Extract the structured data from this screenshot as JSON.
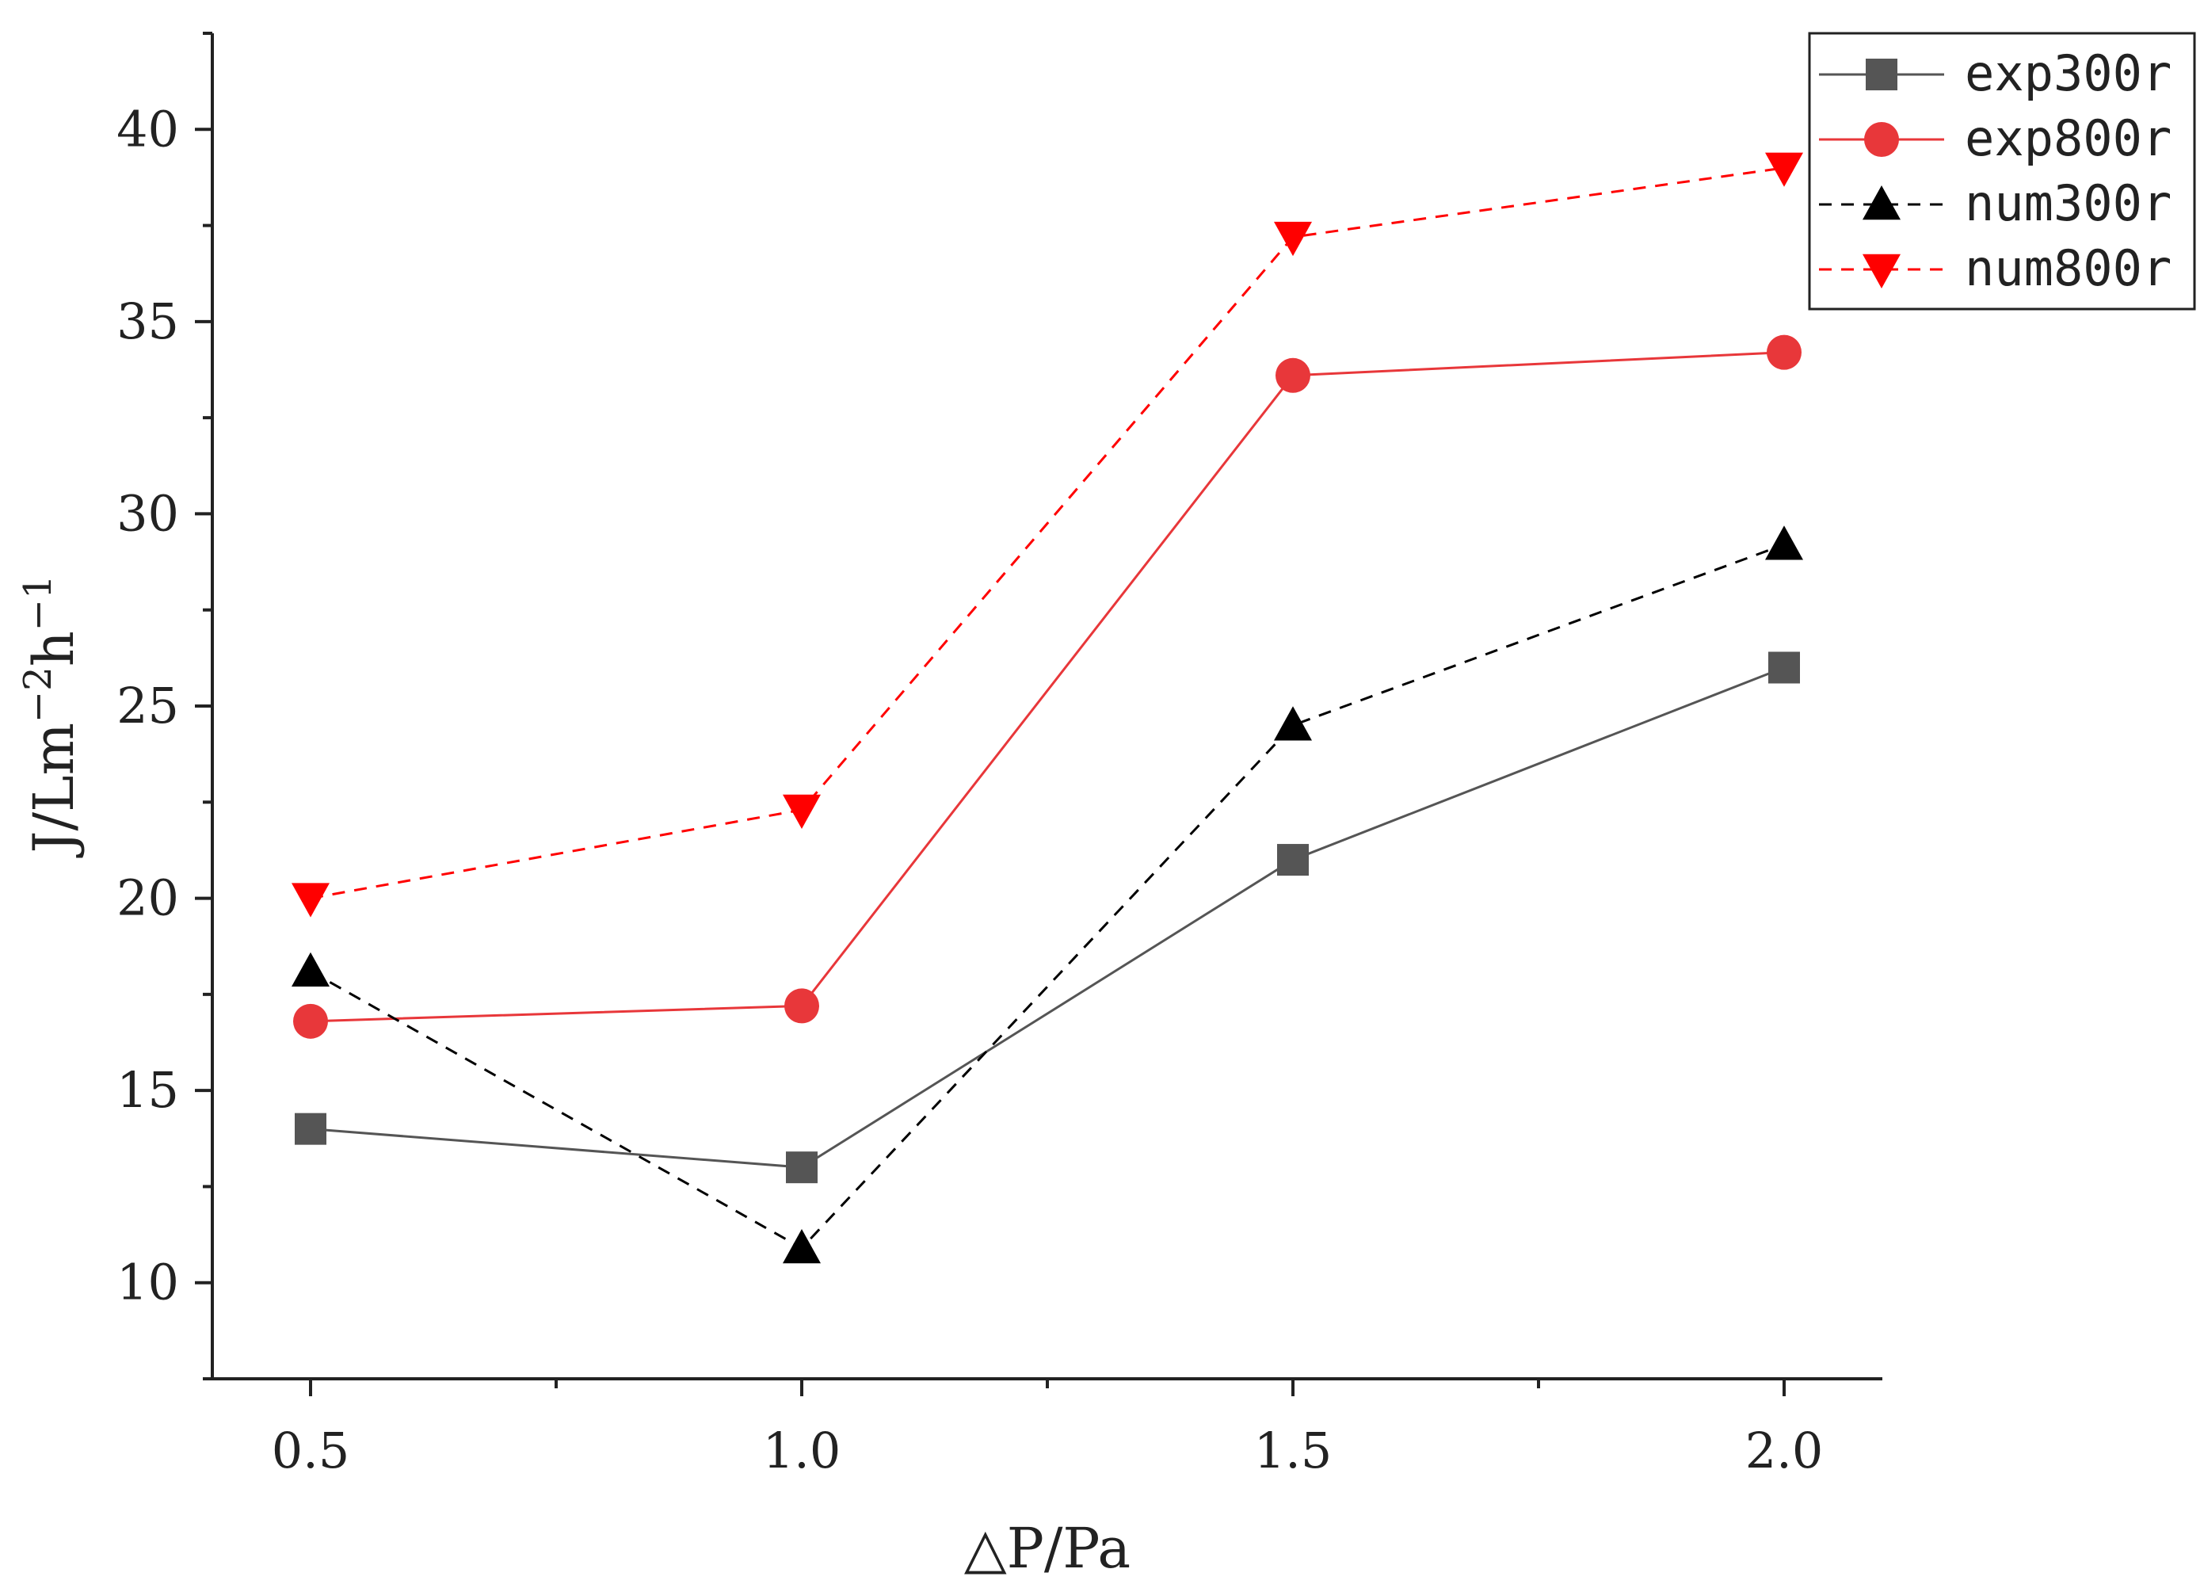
{
  "chart_data": {
    "type": "line",
    "title": "",
    "xlabel": "△P/Pa",
    "ylabel_base": "J/Lm",
    "ylabel_sup1": "−2",
    "ylabel_mid": "h",
    "ylabel_sup2": "−1",
    "x": [
      0.5,
      1.0,
      1.5,
      2.0
    ],
    "xlim": [
      0.4,
      2.1
    ],
    "ylim": [
      7.5,
      42.5
    ],
    "xticks": [
      "0.5",
      "1.0",
      "1.5",
      "2.0"
    ],
    "xtick_values": [
      0.5,
      1.0,
      1.5,
      2.0
    ],
    "xminor_ticks": [
      0.75,
      1.25,
      1.75
    ],
    "yticks": [
      "10",
      "15",
      "20",
      "25",
      "30",
      "35",
      "40"
    ],
    "ytick_values": [
      10,
      15,
      20,
      25,
      30,
      35,
      40
    ],
    "yminor_ticks": [
      7.5,
      12.5,
      17.5,
      22.5,
      27.5,
      32.5,
      37.5,
      42.5
    ],
    "grid": false,
    "legend_position": "top-right",
    "series": [
      {
        "name": "exp300r",
        "values": [
          14.0,
          13.0,
          21.0,
          26.0
        ],
        "color": "#555555",
        "marker": "square",
        "dashed": false
      },
      {
        "name": "exp800r",
        "values": [
          16.8,
          17.2,
          33.6,
          34.2
        ],
        "color": "#e8373a",
        "marker": "circle",
        "dashed": false
      },
      {
        "name": "num300r",
        "values": [
          18.1,
          10.9,
          24.5,
          29.2
        ],
        "color": "#000000",
        "marker": "triangle-up",
        "dashed": true
      },
      {
        "name": "num800r",
        "values": [
          20.0,
          22.3,
          37.2,
          39.0
        ],
        "color": "#ff0000",
        "marker": "triangle-down",
        "dashed": true
      }
    ]
  }
}
